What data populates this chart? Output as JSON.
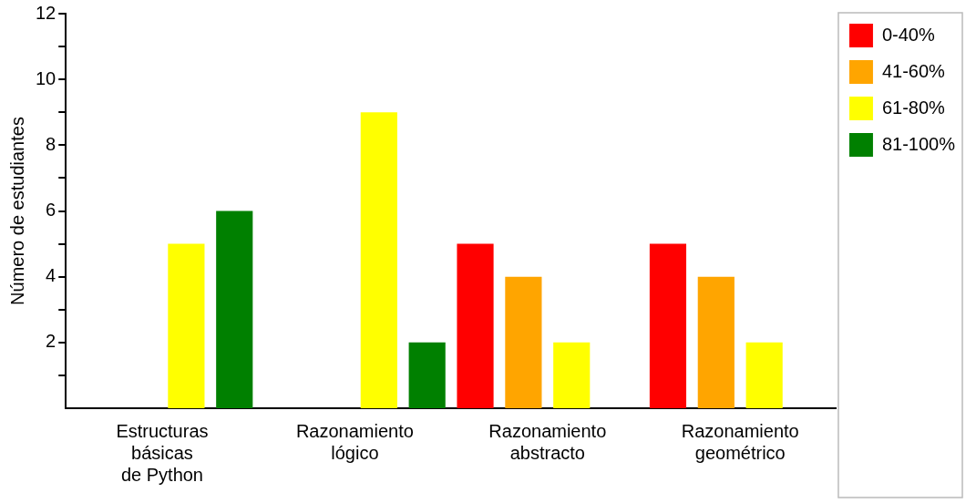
{
  "chart_data": {
    "type": "bar",
    "ylabel": "Número de estudiantes",
    "categories": [
      "Estructuras\nbásicas\nde Python",
      "Razonamiento\nlógico",
      "Razonamiento\nabstracto",
      "Razonamiento\ngeométrico"
    ],
    "series": [
      {
        "name": "0-40%",
        "color": "#ff0000",
        "values": [
          0,
          0,
          5,
          5
        ]
      },
      {
        "name": "41-60%",
        "color": "#ffa500",
        "values": [
          0,
          0,
          4,
          4
        ]
      },
      {
        "name": "61-80%",
        "color": "#ffff00",
        "values": [
          5,
          9,
          2,
          2
        ]
      },
      {
        "name": "81-100%",
        "color": "#008000",
        "values": [
          6,
          2,
          0,
          0
        ]
      }
    ],
    "ylim": [
      0,
      12
    ],
    "yticks": [
      {
        "value": 1,
        "label": null
      },
      2,
      {
        "value": 3,
        "label": null
      },
      4,
      {
        "value": 5,
        "label": null
      },
      6,
      {
        "value": 7,
        "label": null
      },
      8,
      {
        "value": 9,
        "label": null
      },
      10,
      {
        "value": 11,
        "label": null
      },
      12
    ],
    "grid": false,
    "legend": "top right"
  }
}
